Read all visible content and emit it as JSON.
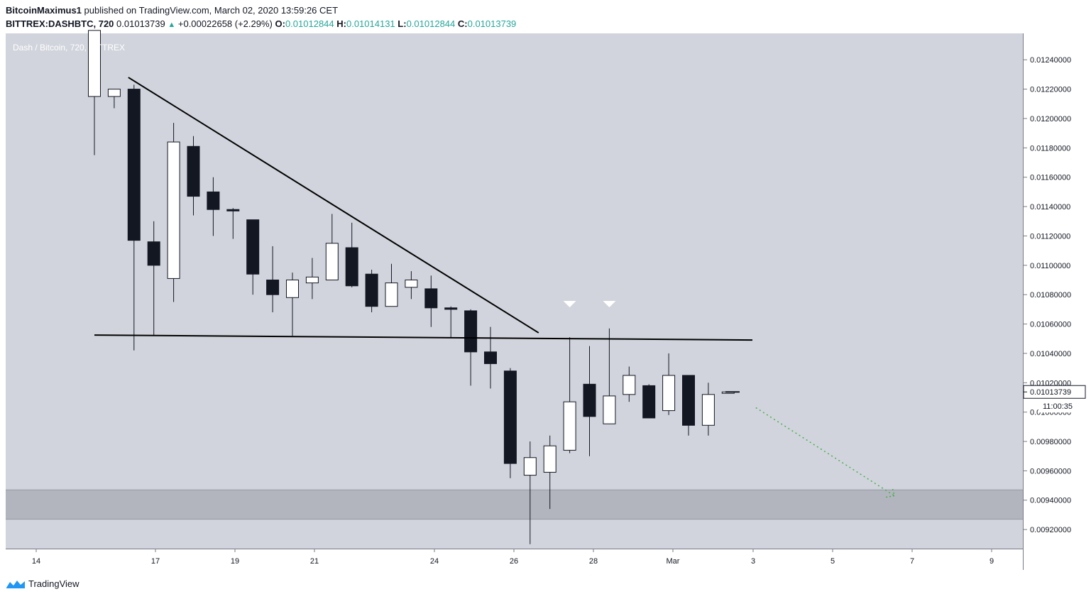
{
  "header": {
    "author": "BitcoinMaximus1",
    "published_text": "published on TradingView.com, March 02, 2020 13:59:26 CET",
    "symbol": "BITTREX:DASHBTC, 720",
    "last": "0.01013739",
    "change": "+0.00022658 (+2.29%)",
    "o_label": "O:",
    "o_value": "0.01012844",
    "h_label": "H:",
    "h_value": "0.01014131",
    "l_label": "L:",
    "l_value": "0.01012844",
    "c_label": "C:",
    "c_value": "0.01013739"
  },
  "plot_title": "Dash / Bitcoin, 720, BITTREX",
  "footer": {
    "brand": "TradingView",
    "logo_icon": "tradingview-logo-icon"
  },
  "colors": {
    "plot_bg": "#d1d4dc",
    "bull_body": "#ffffff",
    "bear_body": "#131722",
    "support_zone": "#b2b5be",
    "projection": "#4caf50",
    "accent_up": "#26a69a"
  },
  "price_label": {
    "value": "0.01013739",
    "countdown": "11:00:35"
  },
  "chart_data": {
    "type": "candlestick",
    "title": "Dash / Bitcoin, 720, BITTREX",
    "x_ticks": [
      "14",
      "17",
      "19",
      "21",
      "24",
      "26",
      "28",
      "Mar",
      "3",
      "5",
      "7",
      "9"
    ],
    "y_ticks": [
      "0.00920000",
      "0.00940000",
      "0.00960000",
      "0.00980000",
      "0.01000000",
      "0.01020000",
      "0.01040000",
      "0.01060000",
      "0.01080000",
      "0.01100000",
      "0.01120000",
      "0.01140000",
      "0.01160000",
      "0.01180000",
      "0.01200000",
      "0.01220000",
      "0.01240000"
    ],
    "ylim": [
      0.00907,
      0.01258
    ],
    "candles": [
      {
        "o": 0.01215,
        "h": 0.0126,
        "l": 0.01175,
        "c": 0.0126
      },
      {
        "o": 0.01215,
        "h": 0.0122,
        "l": 0.01207,
        "c": 0.0122
      },
      {
        "o": 0.0122,
        "h": 0.01223,
        "l": 0.01042,
        "c": 0.01117
      },
      {
        "o": 0.01116,
        "h": 0.0113,
        "l": 0.01052,
        "c": 0.011
      },
      {
        "o": 0.01091,
        "h": 0.01197,
        "l": 0.01075,
        "c": 0.01184
      },
      {
        "o": 0.01181,
        "h": 0.01188,
        "l": 0.01134,
        "c": 0.01147
      },
      {
        "o": 0.0115,
        "h": 0.0116,
        "l": 0.0112,
        "c": 0.01138
      },
      {
        "o": 0.01138,
        "h": 0.01139,
        "l": 0.01118,
        "c": 0.01137
      },
      {
        "o": 0.01131,
        "h": 0.01131,
        "l": 0.0108,
        "c": 0.01094
      },
      {
        "o": 0.0109,
        "h": 0.01113,
        "l": 0.01068,
        "c": 0.0108
      },
      {
        "o": 0.01078,
        "h": 0.01095,
        "l": 0.01052,
        "c": 0.0109
      },
      {
        "o": 0.01088,
        "h": 0.01105,
        "l": 0.01077,
        "c": 0.01092
      },
      {
        "o": 0.0109,
        "h": 0.01135,
        "l": 0.0109,
        "c": 0.01115
      },
      {
        "o": 0.01112,
        "h": 0.01129,
        "l": 0.01085,
        "c": 0.01086
      },
      {
        "o": 0.01094,
        "h": 0.01097,
        "l": 0.01068,
        "c": 0.01072
      },
      {
        "o": 0.01072,
        "h": 0.01101,
        "l": 0.01072,
        "c": 0.01088
      },
      {
        "o": 0.01085,
        "h": 0.01096,
        "l": 0.01077,
        "c": 0.0109
      },
      {
        "o": 0.01084,
        "h": 0.01093,
        "l": 0.01058,
        "c": 0.01071
      },
      {
        "o": 0.01071,
        "h": 0.01072,
        "l": 0.01051,
        "c": 0.0107
      },
      {
        "o": 0.01069,
        "h": 0.0107,
        "l": 0.01018,
        "c": 0.01041
      },
      {
        "o": 0.01041,
        "h": 0.01058,
        "l": 0.01016,
        "c": 0.01033
      },
      {
        "o": 0.01028,
        "h": 0.0103,
        "l": 0.00955,
        "c": 0.00965
      },
      {
        "o": 0.00957,
        "h": 0.0098,
        "l": 0.0091,
        "c": 0.00969
      },
      {
        "o": 0.00959,
        "h": 0.00984,
        "l": 0.00934,
        "c": 0.00977
      },
      {
        "o": 0.00974,
        "h": 0.01051,
        "l": 0.00972,
        "c": 0.01007
      },
      {
        "o": 0.01019,
        "h": 0.01045,
        "l": 0.0097,
        "c": 0.00997
      },
      {
        "o": 0.00992,
        "h": 0.01057,
        "l": 0.00992,
        "c": 0.01011
      },
      {
        "o": 0.01012,
        "h": 0.01031,
        "l": 0.01007,
        "c": 0.01025
      },
      {
        "o": 0.01018,
        "h": 0.01019,
        "l": 0.00996,
        "c": 0.00996
      },
      {
        "o": 0.01001,
        "h": 0.0104,
        "l": 0.00998,
        "c": 0.01025
      },
      {
        "o": 0.01025,
        "h": 0.01025,
        "l": 0.00984,
        "c": 0.00991
      },
      {
        "o": 0.00991,
        "h": 0.0102,
        "l": 0.00984,
        "c": 0.01012
      },
      {
        "o": 0.01012844,
        "h": 0.01014131,
        "l": 0.01012844,
        "c": 0.01013739
      }
    ],
    "support_line": 0.01052,
    "resistance_trendline": [
      [
        2,
        0.01228
      ],
      [
        22,
        0.01054
      ]
    ],
    "support_zone": [
      0.00927,
      0.00947
    ],
    "projection": [
      [
        33.4,
        0.01003
      ],
      [
        40.4,
        0.00943
      ]
    ],
    "markers": [
      24,
      26
    ],
    "grid": false
  }
}
